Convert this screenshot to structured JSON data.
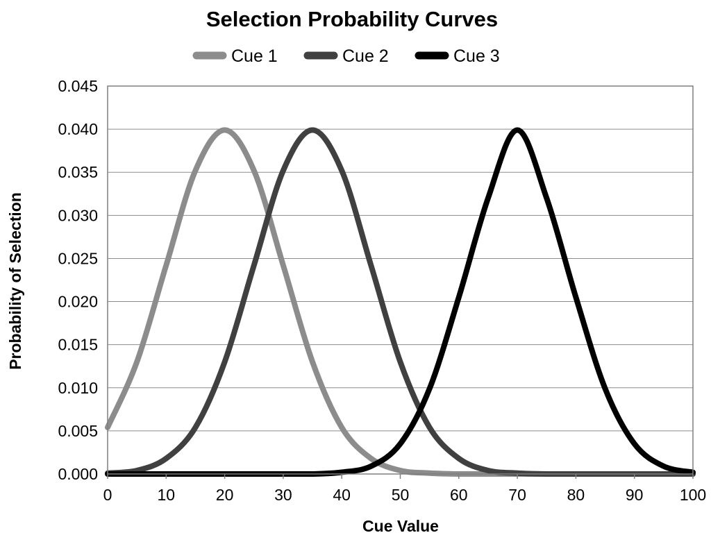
{
  "chart_data": {
    "type": "line",
    "title": "Selection Probability Curves",
    "xlabel": "Cue Value",
    "ylabel": "Probability of Selection",
    "xlim": [
      0,
      100
    ],
    "ylim": [
      0,
      0.045
    ],
    "x_ticks": [
      0,
      10,
      20,
      30,
      40,
      50,
      60,
      70,
      80,
      90,
      100
    ],
    "y_ticks": [
      "0.000",
      "0.005",
      "0.010",
      "0.015",
      "0.020",
      "0.025",
      "0.030",
      "0.035",
      "0.040",
      "0.045"
    ],
    "grid": "horizontal",
    "legend_position": "top",
    "x": [
      0,
      5,
      10,
      15,
      20,
      25,
      30,
      35,
      40,
      45,
      50,
      55,
      60,
      65,
      70,
      75,
      80,
      85,
      90,
      95,
      100
    ],
    "series": [
      {
        "name": "Cue 1",
        "color": "#8c8c8c",
        "values": [
          0.0054,
          0.013,
          0.0242,
          0.0352,
          0.0399,
          0.0352,
          0.0242,
          0.013,
          0.0054,
          0.0018,
          0.0004,
          0.0001,
          0.0,
          0.0,
          0.0,
          0.0,
          0.0,
          0.0,
          0.0,
          0.0,
          0.0
        ]
      },
      {
        "name": "Cue 2",
        "color": "#404040",
        "values": [
          0.0001,
          0.0004,
          0.0018,
          0.0054,
          0.013,
          0.0242,
          0.0352,
          0.0399,
          0.0352,
          0.0242,
          0.013,
          0.0054,
          0.0018,
          0.0004,
          0.0001,
          0.0,
          0.0,
          0.0,
          0.0,
          0.0,
          0.0
        ]
      },
      {
        "name": "Cue 3",
        "color": "#000000",
        "values": [
          0.0,
          0.0,
          0.0,
          0.0,
          0.0,
          0.0,
          0.0,
          0.0,
          0.0002,
          0.0009,
          0.0035,
          0.0099,
          0.0205,
          0.032,
          0.0399,
          0.032,
          0.0205,
          0.0099,
          0.0035,
          0.0009,
          0.0002
        ]
      }
    ]
  }
}
